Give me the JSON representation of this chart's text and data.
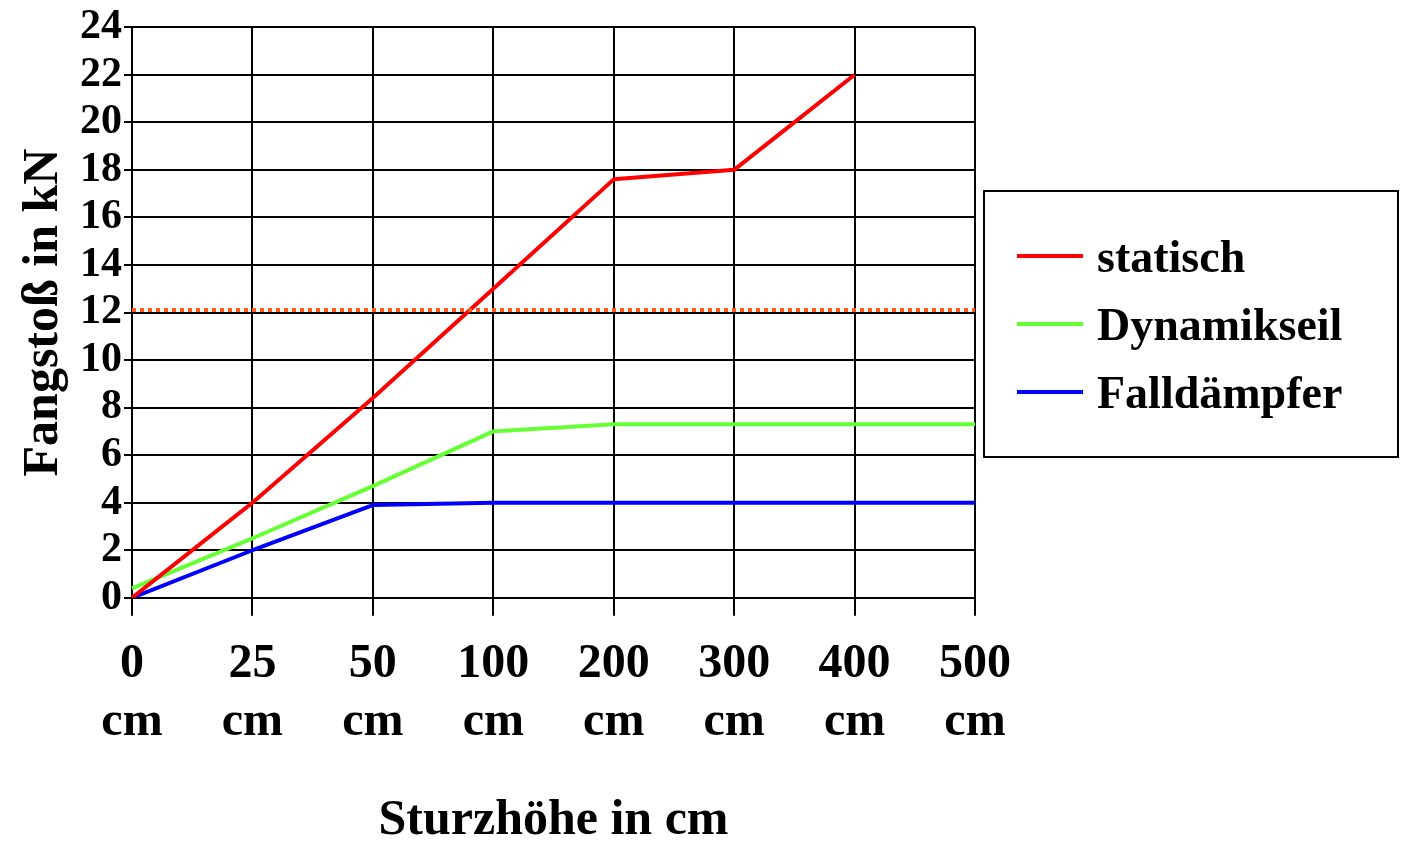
{
  "chart_data": {
    "type": "line",
    "xlabel": "Sturzhöhe in cm",
    "ylabel": "Fangstoß in kN",
    "categories": [
      "0 cm",
      "25 cm",
      "50 cm",
      "100 cm",
      "200 cm",
      "300 cm",
      "400 cm",
      "500 cm"
    ],
    "series": [
      {
        "name": "statisch",
        "color": "#ff0000",
        "values": [
          0,
          4,
          8.4,
          13,
          17.6,
          18,
          22,
          null
        ]
      },
      {
        "name": "Dynamikseil",
        "color": "#66ff33",
        "values": [
          0.4,
          2.5,
          4.7,
          7,
          7.3,
          7.3,
          7.3,
          7.3
        ]
      },
      {
        "name": "Falldämpfer",
        "color": "#0000ff",
        "values": [
          0,
          2,
          3.9,
          4,
          4,
          4,
          4,
          4
        ]
      }
    ],
    "ylim": [
      0,
      24
    ],
    "yticks": [
      0,
      2,
      4,
      6,
      8,
      10,
      12,
      14,
      16,
      18,
      20,
      22,
      24
    ],
    "ref_lines": [
      {
        "axis": "y",
        "value": 12.1,
        "color": "#ff5a1e",
        "line_style": "dotted"
      }
    ],
    "grid": true,
    "legend": "right",
    "marker": "none",
    "line_style": "solid"
  }
}
